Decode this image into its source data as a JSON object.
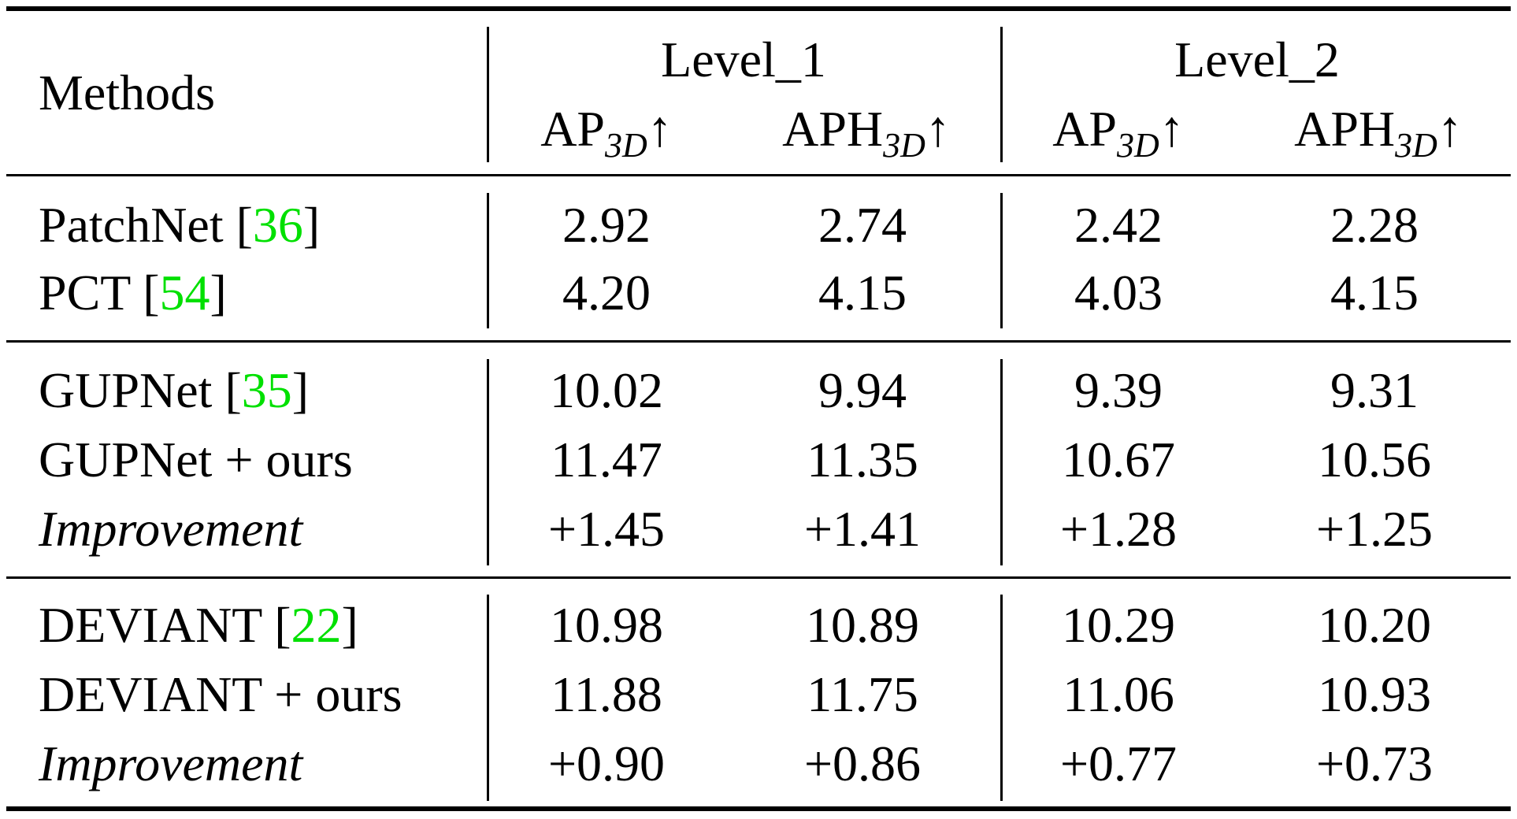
{
  "header": {
    "methods_label": "Methods",
    "level1_label": "Level_1",
    "level2_label": "Level_2",
    "columns": [
      {
        "base": "AP",
        "sub": "3D",
        "arrow": "↑"
      },
      {
        "base": "APH",
        "sub": "3D",
        "arrow": "↑"
      },
      {
        "base": "AP",
        "sub": "3D",
        "arrow": "↑"
      },
      {
        "base": "APH",
        "sub": "3D",
        "arrow": "↑"
      }
    ]
  },
  "groups": [
    {
      "rows": [
        {
          "method": "PatchNet [",
          "ref": "36",
          "close": "]",
          "italic": false,
          "values": [
            "2.92",
            "2.74",
            "2.42",
            "2.28"
          ]
        },
        {
          "method": "PCT [",
          "ref": "54",
          "close": "]",
          "italic": false,
          "values": [
            "4.20",
            "4.15",
            "4.03",
            "4.15"
          ]
        }
      ]
    },
    {
      "rows": [
        {
          "method": "GUPNet [",
          "ref": "35",
          "close": "]",
          "italic": false,
          "values": [
            "10.02",
            "9.94",
            "9.39",
            "9.31"
          ]
        },
        {
          "method": "GUPNet + ours",
          "ref": "",
          "close": "",
          "italic": false,
          "values": [
            "11.47",
            "11.35",
            "10.67",
            "10.56"
          ]
        },
        {
          "method": "Improvement",
          "ref": "",
          "close": "",
          "italic": true,
          "values": [
            "+1.45",
            "+1.41",
            "+1.28",
            "+1.25"
          ]
        }
      ]
    },
    {
      "rows": [
        {
          "method": "DEVIANT [",
          "ref": "22",
          "close": "]",
          "italic": false,
          "values": [
            "10.98",
            "10.89",
            "10.29",
            "10.20"
          ]
        },
        {
          "method": "DEVIANT + ours",
          "ref": "",
          "close": "",
          "italic": false,
          "values": [
            "11.88",
            "11.75",
            "11.06",
            "10.93"
          ]
        },
        {
          "method": "Improvement",
          "ref": "",
          "close": "",
          "italic": true,
          "values": [
            "+0.90",
            "+0.86",
            "+0.77",
            "+0.73"
          ]
        }
      ]
    }
  ],
  "colors": {
    "citation": "#00e000",
    "text": "#000000"
  }
}
